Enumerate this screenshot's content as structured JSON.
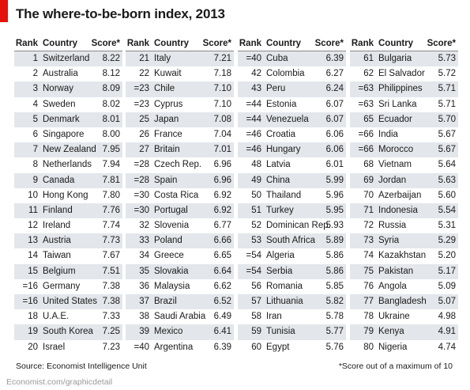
{
  "page": {
    "title": "The where-to-be-born index, 2013",
    "source": "Source: Economist Intelligence Unit",
    "footnote": "*Score out of a maximum of 10",
    "credit": "Economist.com/graphicdetail"
  },
  "headers": {
    "rank": "Rank",
    "country": "Country",
    "score": "Score*"
  },
  "chart_data": {
    "type": "table",
    "title": "The where-to-be-born index, 2013",
    "columns": [
      "Rank",
      "Country",
      "Score*"
    ],
    "rows": [
      [
        "1",
        "Switzerland",
        "8.22"
      ],
      [
        "2",
        "Australia",
        "8.12"
      ],
      [
        "3",
        "Norway",
        "8.09"
      ],
      [
        "4",
        "Sweden",
        "8.02"
      ],
      [
        "5",
        "Denmark",
        "8.01"
      ],
      [
        "6",
        "Singapore",
        "8.00"
      ],
      [
        "7",
        "New Zealand",
        "7.95"
      ],
      [
        "8",
        "Netherlands",
        "7.94"
      ],
      [
        "9",
        "Canada",
        "7.81"
      ],
      [
        "10",
        "Hong Kong",
        "7.80"
      ],
      [
        "11",
        "Finland",
        "7.76"
      ],
      [
        "12",
        "Ireland",
        "7.74"
      ],
      [
        "13",
        "Austria",
        "7.73"
      ],
      [
        "14",
        "Taiwan",
        "7.67"
      ],
      [
        "15",
        "Belgium",
        "7.51"
      ],
      [
        "=16",
        "Germany",
        "7.38"
      ],
      [
        "=16",
        "United States",
        "7.38"
      ],
      [
        "18",
        "U.A.E.",
        "7.33"
      ],
      [
        "19",
        "South Korea",
        "7.25"
      ],
      [
        "20",
        "Israel",
        "7.23"
      ],
      [
        "21",
        "Italy",
        "7.21"
      ],
      [
        "22",
        "Kuwait",
        "7.18"
      ],
      [
        "=23",
        "Chile",
        "7.10"
      ],
      [
        "=23",
        "Cyprus",
        "7.10"
      ],
      [
        "25",
        "Japan",
        "7.08"
      ],
      [
        "26",
        "France",
        "7.04"
      ],
      [
        "27",
        "Britain",
        "7.01"
      ],
      [
        "=28",
        "Czech Rep.",
        "6.96"
      ],
      [
        "=28",
        "Spain",
        "6.96"
      ],
      [
        "=30",
        "Costa Rica",
        "6.92"
      ],
      [
        "=30",
        "Portugal",
        "6.92"
      ],
      [
        "32",
        "Slovenia",
        "6.77"
      ],
      [
        "33",
        "Poland",
        "6.66"
      ],
      [
        "34",
        "Greece",
        "6.65"
      ],
      [
        "35",
        "Slovakia",
        "6.64"
      ],
      [
        "36",
        "Malaysia",
        "6.62"
      ],
      [
        "37",
        "Brazil",
        "6.52"
      ],
      [
        "38",
        "Saudi Arabia",
        "6.49"
      ],
      [
        "39",
        "Mexico",
        "6.41"
      ],
      [
        "=40",
        "Argentina",
        "6.39"
      ],
      [
        "=40",
        "Cuba",
        "6.39"
      ],
      [
        "42",
        "Colombia",
        "6.27"
      ],
      [
        "43",
        "Peru",
        "6.24"
      ],
      [
        "=44",
        "Estonia",
        "6.07"
      ],
      [
        "=44",
        "Venezuela",
        "6.07"
      ],
      [
        "=46",
        "Croatia",
        "6.06"
      ],
      [
        "=46",
        "Hungary",
        "6.06"
      ],
      [
        "48",
        "Latvia",
        "6.01"
      ],
      [
        "49",
        "China",
        "5.99"
      ],
      [
        "50",
        "Thailand",
        "5.96"
      ],
      [
        "51",
        "Turkey",
        "5.95"
      ],
      [
        "52",
        "Dominican Rep.",
        "5.93"
      ],
      [
        "53",
        "South Africa",
        "5.89"
      ],
      [
        "=54",
        "Algeria",
        "5.86"
      ],
      [
        "=54",
        "Serbia",
        "5.86"
      ],
      [
        "56",
        "Romania",
        "5.85"
      ],
      [
        "57",
        "Lithuania",
        "5.82"
      ],
      [
        "58",
        "Iran",
        "5.78"
      ],
      [
        "59",
        "Tunisia",
        "5.77"
      ],
      [
        "60",
        "Egypt",
        "5.76"
      ],
      [
        "61",
        "Bulgaria",
        "5.73"
      ],
      [
        "62",
        "El Salvador",
        "5.72"
      ],
      [
        "=63",
        "Philippines",
        "5.71"
      ],
      [
        "=63",
        "Sri Lanka",
        "5.71"
      ],
      [
        "65",
        "Ecuador",
        "5.70"
      ],
      [
        "=66",
        "India",
        "5.67"
      ],
      [
        "=66",
        "Morocco",
        "5.67"
      ],
      [
        "68",
        "Vietnam",
        "5.64"
      ],
      [
        "69",
        "Jordan",
        "5.63"
      ],
      [
        "70",
        "Azerbaijan",
        "5.60"
      ],
      [
        "71",
        "Indonesia",
        "5.54"
      ],
      [
        "72",
        "Russia",
        "5.31"
      ],
      [
        "73",
        "Syria",
        "5.29"
      ],
      [
        "74",
        "Kazakhstan",
        "5.20"
      ],
      [
        "75",
        "Pakistan",
        "5.17"
      ],
      [
        "76",
        "Angola",
        "5.09"
      ],
      [
        "77",
        "Bangladesh",
        "5.07"
      ],
      [
        "78",
        "Ukraine",
        "4.98"
      ],
      [
        "79",
        "Kenya",
        "4.91"
      ],
      [
        "80",
        "Nigeria",
        "4.74"
      ]
    ]
  }
}
